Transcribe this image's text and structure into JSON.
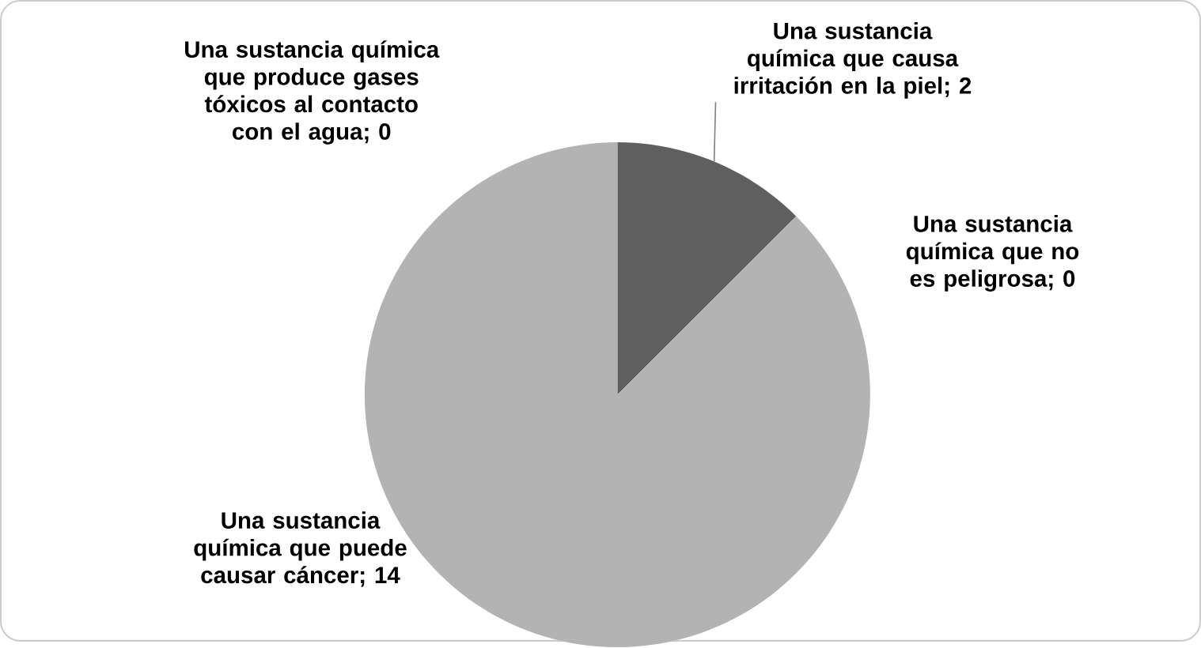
{
  "chart_data": {
    "type": "pie",
    "categories": [
      "Una sustancia química que causa irritación en la piel; 2",
      "Una sustancia química que no es peligrosa; 0",
      "Una sustancia química que puede causar cáncer; 14",
      "Una sustancia química que produce gases tóxicos al contacto con el agua; 0"
    ],
    "values": [
      2,
      0,
      14,
      0
    ],
    "colors": [
      "#5f5f5f",
      "#8c8c8c",
      "#b3b3b3",
      "#d0d0d0"
    ]
  }
}
